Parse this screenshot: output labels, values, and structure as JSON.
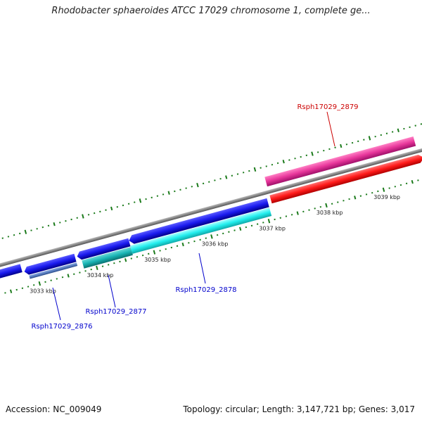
{
  "title": "Rhodobacter sphaeroides ATCC 17029 chromosome 1, complete ge...",
  "footer": {
    "accession": "Accession: NC_009049",
    "summary": "Topology: circular; Length: 3,147,721 bp; Genes: 3,017"
  },
  "scale_labels": [
    "3033 kbp",
    "3034 kbp",
    "3035 kbp",
    "3036 kbp",
    "3037 kbp",
    "3038 kbp",
    "3039 kbp"
  ],
  "genes": [
    {
      "label": "Rsph17029_2876",
      "color": "#0000cc"
    },
    {
      "label": "Rsph17029_2877",
      "color": "#0000cc"
    },
    {
      "label": "Rsph17029_2878",
      "color": "#0000cc"
    },
    {
      "label": "Rsph17029_2879",
      "color": "#cc0000"
    }
  ],
  "colors": {
    "backbone": "#888888",
    "tick": "#1a7a1a",
    "cds_blue": "#1a1aee",
    "cds_light_blue": "#5a7fc0",
    "cds_teal": "#18b4b4",
    "cds_cyan": "#22eeee",
    "cds_pink": "#e8369b",
    "cds_red": "#ff1a1a"
  }
}
